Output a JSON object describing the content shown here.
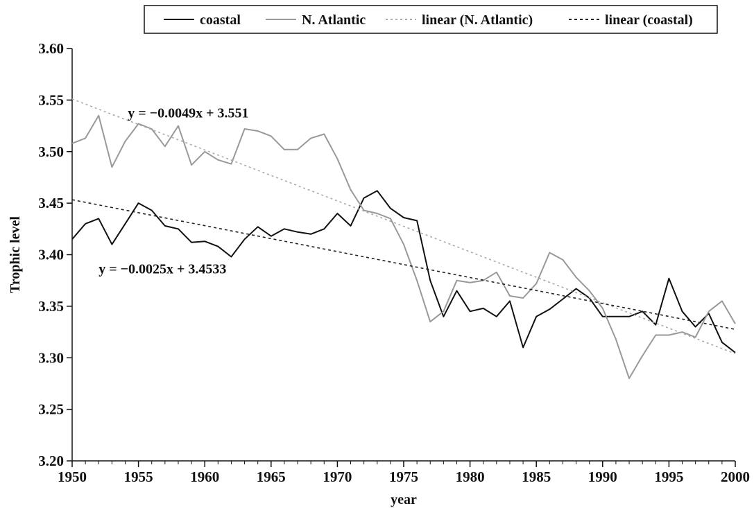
{
  "chart_data": {
    "type": "line",
    "xlabel": "year",
    "ylabel": "Trophic level",
    "xlim": [
      1950,
      2000
    ],
    "ylim": [
      3.2,
      3.6
    ],
    "x_ticks": [
      "1950",
      "1955",
      "1960",
      "1965",
      "1970",
      "1975",
      "1980",
      "1985",
      "1990",
      "1995",
      "2000"
    ],
    "y_ticks": [
      "3.20",
      "3.25",
      "3.30",
      "3.35",
      "3.40",
      "3.45",
      "3.50",
      "3.55",
      "3.60"
    ],
    "legend_position": "top",
    "x": [
      1950,
      1951,
      1952,
      1953,
      1954,
      1955,
      1956,
      1957,
      1958,
      1959,
      1960,
      1961,
      1962,
      1963,
      1964,
      1965,
      1966,
      1967,
      1968,
      1969,
      1970,
      1971,
      1972,
      1973,
      1974,
      1975,
      1976,
      1977,
      1978,
      1979,
      1980,
      1981,
      1982,
      1983,
      1984,
      1985,
      1986,
      1987,
      1988,
      1989,
      1990,
      1991,
      1992,
      1993,
      1994,
      1995,
      1996,
      1997,
      1998,
      1999,
      2000
    ],
    "series": [
      {
        "name": "coastal",
        "color": "#111111",
        "style": "solid",
        "values": [
          3.415,
          3.43,
          3.435,
          3.41,
          3.43,
          3.45,
          3.443,
          3.428,
          3.425,
          3.412,
          3.413,
          3.408,
          3.398,
          3.415,
          3.427,
          3.418,
          3.425,
          3.422,
          3.42,
          3.425,
          3.44,
          3.428,
          3.455,
          3.462,
          3.445,
          3.436,
          3.433,
          3.375,
          3.34,
          3.365,
          3.345,
          3.348,
          3.34,
          3.355,
          3.31,
          3.34,
          3.347,
          3.357,
          3.367,
          3.358,
          3.34,
          3.34,
          3.34,
          3.345,
          3.332,
          3.377,
          3.345,
          3.33,
          3.343,
          3.315,
          3.305
        ]
      },
      {
        "name": "N. Atlantic",
        "color": "#999999",
        "style": "solid",
        "values": [
          3.508,
          3.513,
          3.535,
          3.485,
          3.51,
          3.527,
          3.522,
          3.505,
          3.525,
          3.487,
          3.5,
          3.492,
          3.488,
          3.522,
          3.52,
          3.515,
          3.502,
          3.502,
          3.513,
          3.517,
          3.493,
          3.463,
          3.443,
          3.44,
          3.435,
          3.41,
          3.375,
          3.335,
          3.345,
          3.375,
          3.373,
          3.375,
          3.383,
          3.36,
          3.358,
          3.372,
          3.402,
          3.395,
          3.378,
          3.365,
          3.348,
          3.318,
          3.28,
          3.302,
          3.322,
          3.322,
          3.325,
          3.32,
          3.345,
          3.355,
          3.333
        ]
      },
      {
        "name": "linear (N. Atlantic)",
        "color": "#aaaaaa",
        "style": "dotted",
        "values_endpoints": [
          3.551,
          3.304
        ]
      },
      {
        "name": "linear (coastal)",
        "color": "#222222",
        "style": "dashed",
        "values_endpoints": [
          3.4533,
          3.3275
        ]
      }
    ],
    "annotations": [
      {
        "text": "y = −0.0049x + 3.551",
        "x": 1954.2,
        "y": 3.533
      },
      {
        "text": "y = −0.0025x + 3.4533",
        "x": 1952.0,
        "y": 3.382
      }
    ]
  }
}
